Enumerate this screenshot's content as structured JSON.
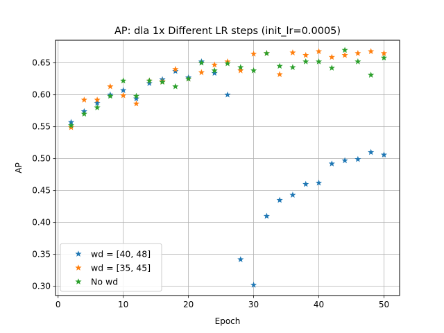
{
  "chart_data": {
    "type": "scatter",
    "title": "AP: dla 1x Different LR steps (init_lr=0.0005)",
    "xlabel": "Epoch",
    "ylabel": "AP",
    "xlim": [
      -0.4,
      52.4
    ],
    "ylim": [
      0.2855,
      0.6855
    ],
    "xticks": [
      0,
      10,
      20,
      30,
      40,
      50
    ],
    "yticks": [
      0.3,
      0.35,
      0.4,
      0.45,
      0.5,
      0.55,
      0.6,
      0.65
    ],
    "ytick_labels": [
      "0.30",
      "0.35",
      "0.40",
      "0.45",
      "0.50",
      "0.55",
      "0.60",
      "0.65"
    ],
    "grid": true,
    "legend_position": "lower-left",
    "marker": "star",
    "series": [
      {
        "name": "wd = [40, 48]",
        "color": "#1f77b4",
        "x": [
          2,
          4,
          6,
          8,
          10,
          12,
          14,
          16,
          18,
          20,
          22,
          24,
          26,
          28,
          30,
          32,
          34,
          36,
          38,
          40,
          42,
          44,
          46,
          48,
          50
        ],
        "y": [
          0.557,
          0.574,
          0.587,
          0.6,
          0.607,
          0.594,
          0.618,
          0.624,
          0.637,
          0.627,
          0.652,
          0.634,
          0.6,
          0.342,
          0.302,
          0.41,
          0.435,
          0.443,
          0.46,
          0.462,
          0.492,
          0.497,
          0.499,
          0.51,
          0.506
        ]
      },
      {
        "name": "wd = [35, 45]",
        "color": "#ff7f0e",
        "x": [
          2,
          4,
          6,
          8,
          10,
          12,
          14,
          16,
          18,
          20,
          22,
          24,
          26,
          28,
          30,
          32,
          34,
          36,
          38,
          40,
          42,
          44,
          46,
          48,
          50
        ],
        "y": [
          0.549,
          0.592,
          0.592,
          0.613,
          0.599,
          0.586,
          0.622,
          0.621,
          0.64,
          0.625,
          0.635,
          0.647,
          0.652,
          0.638,
          0.664,
          0.665,
          0.632,
          0.666,
          0.662,
          0.668,
          0.659,
          0.662,
          0.665,
          0.668,
          0.665
        ]
      },
      {
        "name": "No wd",
        "color": "#2ca02c",
        "x": [
          2,
          4,
          6,
          8,
          10,
          12,
          14,
          16,
          18,
          20,
          22,
          24,
          26,
          28,
          30,
          32,
          34,
          36,
          38,
          40,
          42,
          44,
          46,
          48,
          50
        ],
        "y": [
          0.552,
          0.57,
          0.58,
          0.598,
          0.622,
          0.598,
          0.622,
          0.62,
          0.613,
          0.625,
          0.65,
          0.638,
          0.649,
          0.643,
          0.638,
          0.665,
          0.645,
          0.643,
          0.652,
          0.652,
          0.642,
          0.67,
          0.652,
          0.631,
          0.658
        ]
      }
    ]
  }
}
